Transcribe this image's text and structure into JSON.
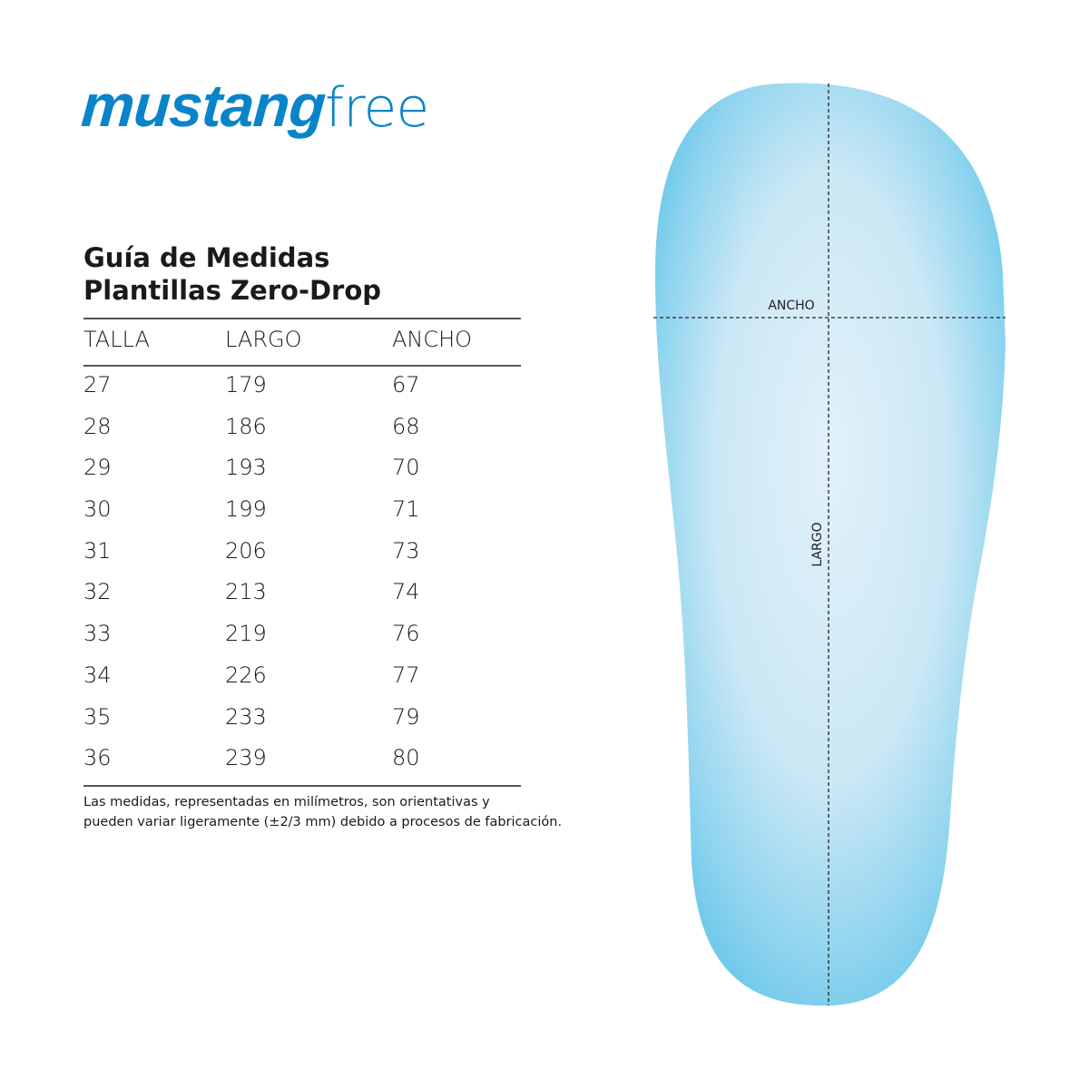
{
  "brand": {
    "logo_bold": "mustang",
    "logo_light": "free",
    "color": "#0a84c9"
  },
  "title": {
    "line1": "Guía de Medidas",
    "line2": "Plantillas Zero-Drop"
  },
  "table": {
    "headers": [
      "TALLA",
      "LARGO",
      "ANCHO"
    ],
    "rows": [
      [
        "27",
        "179",
        "67"
      ],
      [
        "28",
        "186",
        "68"
      ],
      [
        "29",
        "193",
        "70"
      ],
      [
        "30",
        "199",
        "71"
      ],
      [
        "31",
        "206",
        "73"
      ],
      [
        "32",
        "213",
        "74"
      ],
      [
        "33",
        "219",
        "76"
      ],
      [
        "34",
        "226",
        "77"
      ],
      [
        "35",
        "233",
        "79"
      ],
      [
        "36",
        "239",
        "80"
      ]
    ]
  },
  "note": {
    "line1": "Las medidas, representadas en milímetros, son orientativas y",
    "line2": "pueden variar ligeramente (±2/3 mm) debido a procesos de fabricación."
  },
  "diagram": {
    "width_label": "ANCHO",
    "length_label": "LARGO",
    "insole_color": "#6cc8ea"
  }
}
